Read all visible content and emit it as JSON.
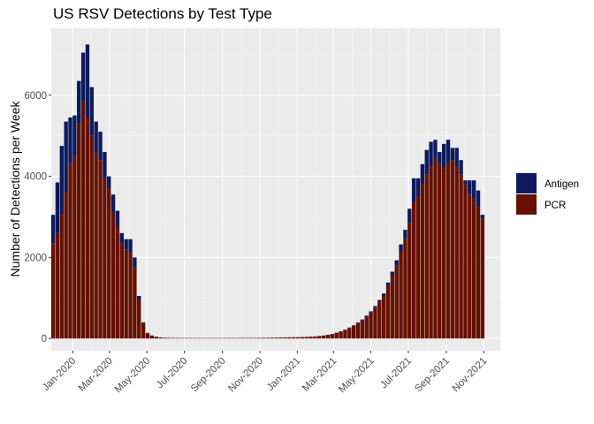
{
  "chart_data": {
    "type": "bar",
    "stacked": true,
    "title": "US RSV Detections by Test Type",
    "xlabel": "",
    "ylabel": "Number of Detections per Week",
    "ylim": [
      -300,
      7650
    ],
    "y_ticks": [
      0,
      2000,
      4000,
      6000
    ],
    "x_range": [
      "2019-11-27",
      "2021-11-28"
    ],
    "x_tick_labels": [
      "Jan-2020",
      "Mar-2020",
      "May-2020",
      "Jul-2020",
      "Sep-2020",
      "Nov-2020",
      "Jan-2021",
      "Mar-2021",
      "May-2021",
      "Jul-2021",
      "Sep-2021",
      "Nov-2021"
    ],
    "x_tick_dates": [
      "2020-01-01",
      "2020-03-01",
      "2020-05-01",
      "2020-07-01",
      "2020-09-01",
      "2020-11-01",
      "2021-01-01",
      "2021-03-01",
      "2021-05-01",
      "2021-07-01",
      "2021-09-01",
      "2021-11-01"
    ],
    "first_week": "2019-11-30",
    "week_interval_days": 7,
    "grid": true,
    "legend_position": "right",
    "series": [
      {
        "name": "PCR",
        "color": "#661100",
        "values": [
          2350,
          2600,
          3050,
          3600,
          4300,
          4500,
          5300,
          5850,
          5450,
          5000,
          4600,
          4400,
          3950,
          3700,
          3100,
          2750,
          2350,
          2200,
          2100,
          1750,
          950,
          380,
          130,
          70,
          40,
          25,
          18,
          15,
          14,
          13,
          12,
          12,
          12,
          11,
          11,
          11,
          11,
          11,
          11,
          11,
          12,
          12,
          12,
          12,
          13,
          13,
          14,
          14,
          15,
          16,
          18,
          20,
          22,
          24,
          26,
          28,
          30,
          33,
          36,
          40,
          45,
          50,
          60,
          72,
          90,
          110,
          140,
          170,
          210,
          260,
          310,
          380,
          450,
          540,
          640,
          760,
          900,
          1050,
          1300,
          1550,
          1800,
          2150,
          2450,
          2850,
          3350,
          3500,
          3800,
          4050,
          4250,
          4450,
          4300,
          4200,
          4350,
          4400,
          4250,
          4050,
          3800,
          3550,
          3450,
          3250,
          2950
        ]
      },
      {
        "name": "Antigen",
        "color": "#0d1b5e",
        "values": [
          700,
          1250,
          1700,
          1750,
          1150,
          1000,
          1050,
          1200,
          1800,
          1200,
          750,
          700,
          650,
          300,
          450,
          400,
          250,
          250,
          350,
          250,
          100,
          20,
          10,
          5,
          5,
          3,
          2,
          2,
          2,
          2,
          2,
          2,
          2,
          2,
          2,
          2,
          2,
          2,
          2,
          2,
          2,
          2,
          2,
          2,
          2,
          2,
          2,
          2,
          2,
          2,
          2,
          2,
          2,
          2,
          2,
          2,
          2,
          2,
          2,
          2,
          2,
          2,
          3,
          3,
          4,
          5,
          6,
          8,
          10,
          12,
          15,
          18,
          20,
          25,
          30,
          40,
          50,
          60,
          80,
          100,
          130,
          170,
          230,
          350,
          600,
          450,
          500,
          600,
          600,
          450,
          300,
          600,
          550,
          300,
          450,
          350,
          100,
          350,
          450,
          400,
          100
        ]
      }
    ]
  }
}
